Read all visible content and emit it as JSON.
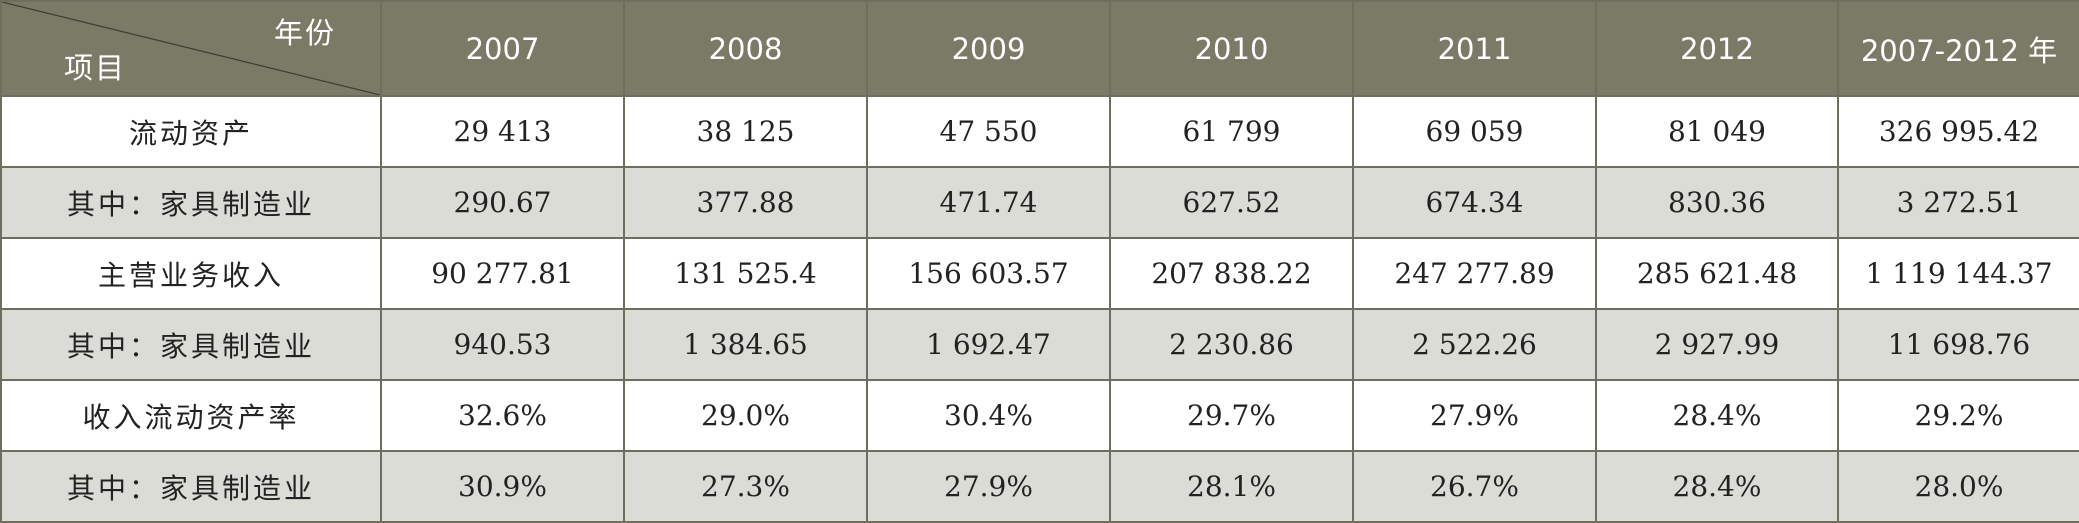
{
  "table": {
    "corner_top": "年份",
    "corner_bottom": "项目",
    "columns": [
      "2007",
      "2008",
      "2009",
      "2010",
      "2011",
      "2012",
      "2007-2012 年"
    ],
    "rows": [
      {
        "label": "流动资产",
        "values": [
          "29 413",
          "38 125",
          "47 550",
          "61 799",
          "69 059",
          "81 049",
          "326 995.42"
        ]
      },
      {
        "label": "其中：家具制造业",
        "values": [
          "290.67",
          "377.88",
          "471.74",
          "627.52",
          "674.34",
          "830.36",
          "3 272.51"
        ]
      },
      {
        "label": "主营业务收入",
        "values": [
          "90 277.81",
          "131 525.4",
          "156 603.57",
          "207 838.22",
          "247 277.89",
          "285 621.48",
          "1 119 144.37"
        ]
      },
      {
        "label": "其中：家具制造业",
        "values": [
          "940.53",
          "1 384.65",
          "1 692.47",
          "2 230.86",
          "2 522.26",
          "2 927.99",
          "11 698.76"
        ]
      },
      {
        "label": "收入流动资产率",
        "values": [
          "32.6%",
          "29.0%",
          "30.4%",
          "29.7%",
          "27.9%",
          "28.4%",
          "29.2%"
        ]
      },
      {
        "label": "其中：家具制造业",
        "values": [
          "30.9%",
          "27.3%",
          "27.9%",
          "28.1%",
          "26.7%",
          "28.4%",
          "28.0%"
        ]
      }
    ]
  },
  "colors": {
    "header_bg": "#7b7a66",
    "header_text": "#ffffff",
    "alt_row_bg": "#dcdcd7",
    "border": "#6e6e5f"
  }
}
